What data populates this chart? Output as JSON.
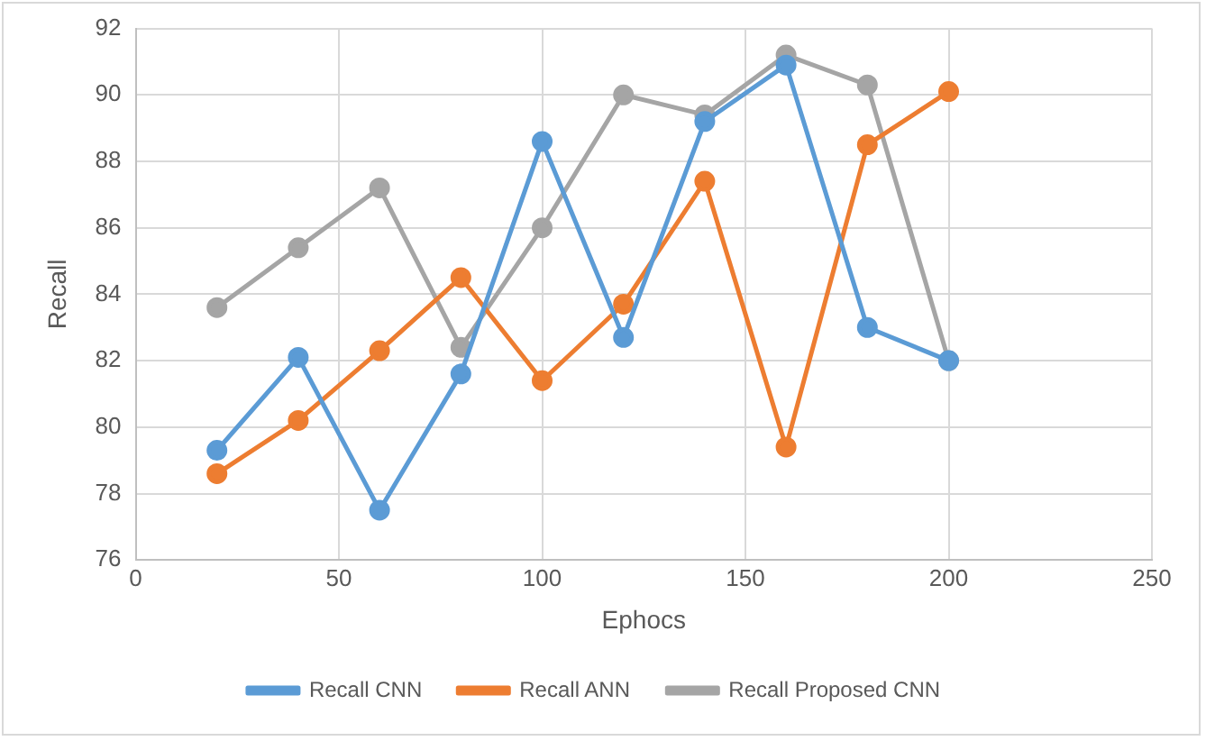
{
  "chart_data": {
    "type": "line",
    "xlabel": "Ephocs",
    "ylabel": "Recall",
    "x": [
      20,
      40,
      60,
      80,
      100,
      120,
      140,
      160,
      180,
      200
    ],
    "series": [
      {
        "name": "Recall CNN",
        "color": "#5b9bd5",
        "values": [
          79.3,
          82.1,
          77.5,
          81.6,
          88.6,
          82.7,
          89.2,
          90.9,
          83.0,
          82.0
        ]
      },
      {
        "name": "Recall ANN",
        "color": "#ed7d31",
        "values": [
          78.6,
          80.2,
          82.3,
          84.5,
          81.4,
          83.7,
          87.4,
          79.4,
          88.5,
          90.1
        ]
      },
      {
        "name": "Recall Proposed CNN",
        "color": "#a5a5a5",
        "values": [
          83.6,
          85.4,
          87.2,
          82.4,
          86.0,
          90.0,
          89.4,
          91.2,
          90.3,
          82.0
        ]
      }
    ],
    "xlim": [
      0,
      250
    ],
    "xticks": [
      0,
      50,
      100,
      150,
      200,
      250
    ],
    "ylim": [
      76,
      92
    ],
    "yticks": [
      76,
      78,
      80,
      82,
      84,
      86,
      88,
      90,
      92
    ],
    "grid": true,
    "legend": "bottom",
    "marker": "circle",
    "line_style": "solid"
  }
}
